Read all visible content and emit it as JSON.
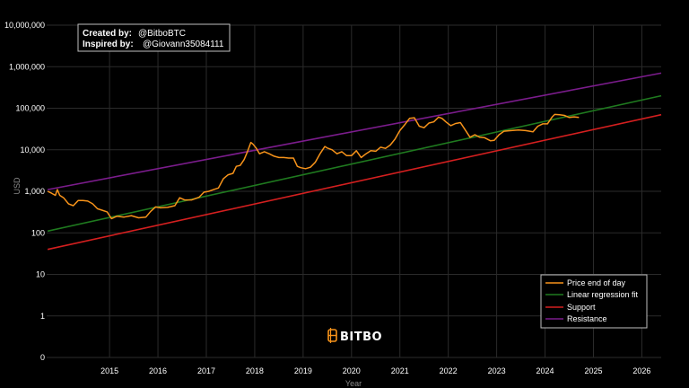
{
  "credits": {
    "created_label": "Created by:",
    "created_value": "@BitboBTC",
    "inspired_label": "Inspired by:",
    "inspired_value": "@Giovann35084111"
  },
  "brand": {
    "name": "BITBO",
    "icon": "bitcoin-b-icon",
    "color": "#f7931a"
  },
  "colors": {
    "background": "#000000",
    "grid": "#2b2b2b",
    "price": "#f7931a",
    "regression": "#1f7a1f",
    "support": "#d41f1f",
    "resistance": "#7b1c8c"
  },
  "chart_data": {
    "type": "line",
    "title": "",
    "xlabel": "Year",
    "ylabel": "USD",
    "yscale": "log",
    "ylim": [
      0.1,
      10000000
    ],
    "xlim": [
      2013.7,
      2026.4
    ],
    "grid": true,
    "legend_position": "bottom-right",
    "x_ticks": [
      2015,
      2016,
      2017,
      2018,
      2019,
      2020,
      2021,
      2022,
      2023,
      2024,
      2025,
      2026
    ],
    "x_tick_labels": [
      "2015",
      "2016",
      "2017",
      "2018",
      "2019",
      "2020",
      "2021",
      "2022",
      "2023",
      "2024",
      "2025",
      "2026"
    ],
    "y_ticks": [
      0.1,
      1,
      10,
      100,
      1000,
      10000,
      100000,
      1000000,
      10000000
    ],
    "y_tick_labels": [
      "0",
      "1",
      "10",
      "100",
      "1,000",
      "10,000",
      "100,000",
      "1,000,000",
      "10,000,000"
    ],
    "series": [
      {
        "name": "Price end of day",
        "color": "#f7931a",
        "x": [
          2013.72,
          2013.8,
          2013.88,
          2013.92,
          2013.97,
          2014.05,
          2014.15,
          2014.25,
          2014.35,
          2014.45,
          2014.55,
          2014.65,
          2014.75,
          2014.85,
          2014.95,
          2015.0,
          2015.04,
          2015.15,
          2015.3,
          2015.45,
          2015.6,
          2015.75,
          2015.85,
          2015.95,
          2016.05,
          2016.2,
          2016.35,
          2016.45,
          2016.55,
          2016.7,
          2016.85,
          2016.95,
          2017.05,
          2017.15,
          2017.25,
          2017.35,
          2017.45,
          2017.55,
          2017.62,
          2017.7,
          2017.78,
          2017.85,
          2017.92,
          2017.96,
          2018.03,
          2018.1,
          2018.2,
          2018.3,
          2018.4,
          2018.5,
          2018.6,
          2018.7,
          2018.8,
          2018.88,
          2018.95,
          2019.05,
          2019.15,
          2019.25,
          2019.35,
          2019.45,
          2019.5,
          2019.6,
          2019.7,
          2019.8,
          2019.9,
          2020.0,
          2020.1,
          2020.2,
          2020.3,
          2020.4,
          2020.5,
          2020.6,
          2020.7,
          2020.8,
          2020.9,
          2021.0,
          2021.1,
          2021.2,
          2021.3,
          2021.4,
          2021.5,
          2021.6,
          2021.7,
          2021.8,
          2021.87,
          2021.95,
          2022.05,
          2022.15,
          2022.25,
          2022.35,
          2022.45,
          2022.55,
          2022.65,
          2022.75,
          2022.87,
          2022.95,
          2023.05,
          2023.15,
          2023.3,
          2023.45,
          2023.6,
          2023.75,
          2023.85,
          2023.95,
          2024.05,
          2024.15,
          2024.2,
          2024.3,
          2024.4,
          2024.5,
          2024.6,
          2024.7
        ],
        "y": [
          1000,
          900,
          800,
          1100,
          800,
          700,
          500,
          450,
          600,
          600,
          580,
          500,
          380,
          350,
          320,
          260,
          220,
          250,
          240,
          260,
          230,
          240,
          330,
          420,
          400,
          410,
          450,
          700,
          620,
          620,
          720,
          950,
          1000,
          1100,
          1200,
          2000,
          2500,
          2700,
          4000,
          4200,
          5800,
          9000,
          15000,
          13800,
          11000,
          8000,
          9000,
          8000,
          7000,
          6500,
          6500,
          6300,
          6300,
          4000,
          3700,
          3500,
          3800,
          5000,
          8000,
          12000,
          11000,
          10000,
          8000,
          9000,
          7200,
          7200,
          9500,
          6500,
          8000,
          9500,
          9200,
          11500,
          10800,
          13000,
          18000,
          29000,
          40000,
          57000,
          59000,
          37000,
          34000,
          44000,
          47000,
          61000,
          57000,
          47000,
          38000,
          43000,
          45000,
          30000,
          20000,
          23000,
          20000,
          19500,
          16500,
          16800,
          23000,
          28000,
          29000,
          30000,
          29000,
          27000,
          37000,
          42000,
          42000,
          62000,
          71000,
          70000,
          67000,
          60000,
          62000,
          60000
        ]
      },
      {
        "name": "Linear regression fit",
        "color": "#1f7a1f",
        "x": [
          2013.72,
          2026.4
        ],
        "y": [
          110,
          200000
        ]
      },
      {
        "name": "Support",
        "color": "#d41f1f",
        "x": [
          2013.72,
          2026.4
        ],
        "y": [
          40,
          70000
        ]
      },
      {
        "name": "Resistance",
        "color": "#7b1c8c",
        "x": [
          2013.72,
          2026.4
        ],
        "y": [
          1100,
          700000
        ]
      }
    ]
  }
}
